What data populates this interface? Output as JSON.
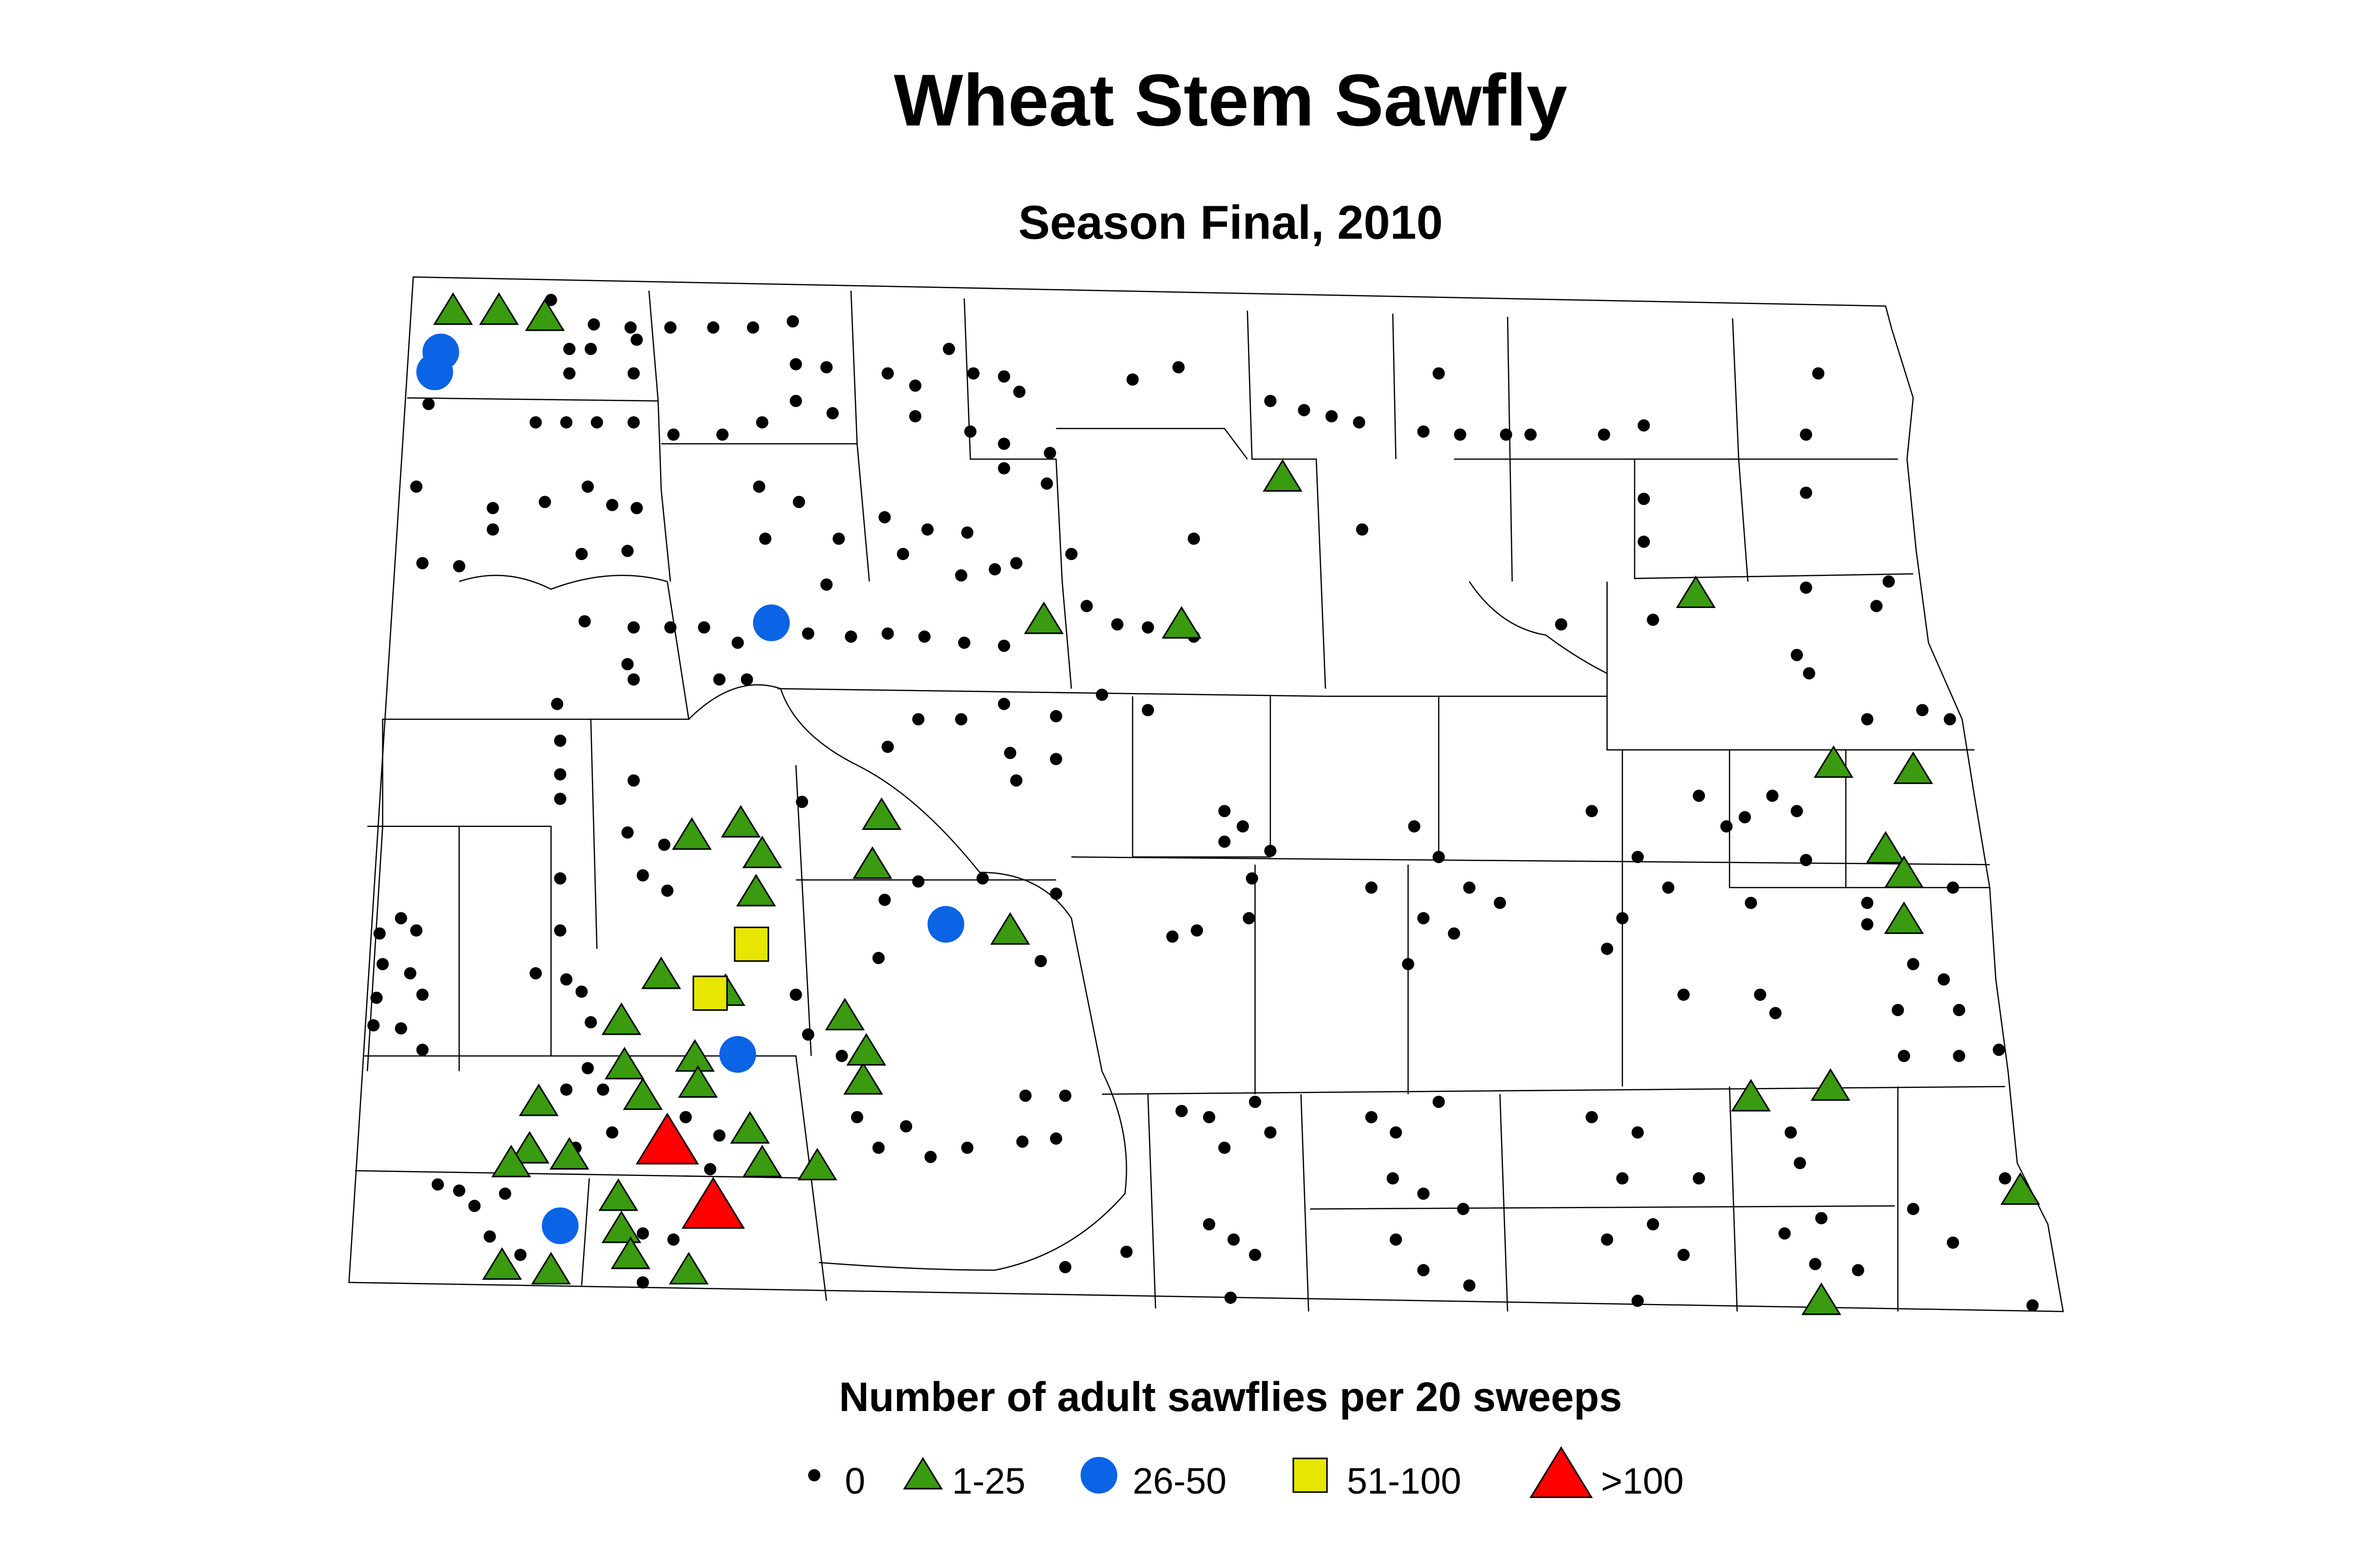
{
  "title": "Wheat Stem Sawfly",
  "subtitle": "Season Final, 2010",
  "legend": {
    "title": "Number of adult sawflies per 20 sweeps",
    "items": [
      {
        "label": "0",
        "shape": "dot",
        "color": "#000000"
      },
      {
        "label": "1-25",
        "shape": "triangle",
        "color": "#3a9a10"
      },
      {
        "label": "26-50",
        "shape": "circle",
        "color": "#0b63e5"
      },
      {
        "label": "51-100",
        "shape": "square",
        "color": "#e6e600"
      },
      {
        "label": ">100",
        "shape": "triangle",
        "color": "#ff0000"
      }
    ]
  }
}
